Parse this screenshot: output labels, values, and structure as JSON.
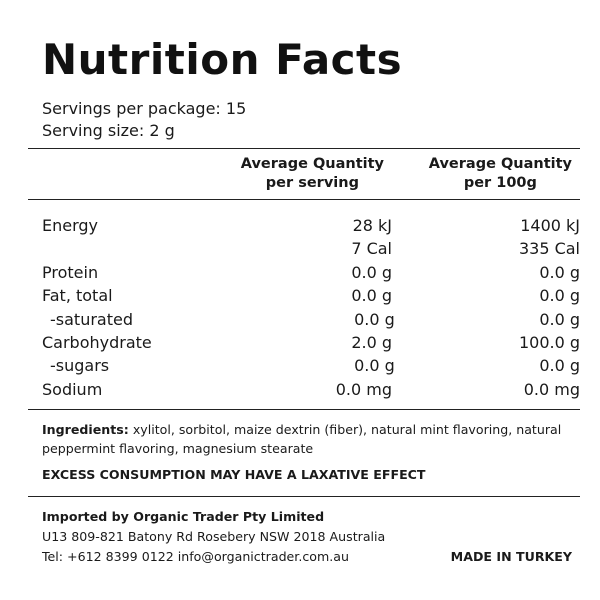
{
  "title": "Nutrition Facts",
  "servings_per_package": "Servings per package: 15",
  "serving_size": "Serving size: 2 g",
  "columns": {
    "per_serving": [
      "Average Quantity",
      "per serving"
    ],
    "per_100g": [
      "Average Quantity",
      "per 100g"
    ]
  },
  "rows": [
    {
      "name": "Energy",
      "per_serving": "28 kJ",
      "per_100g": "1400 kJ"
    },
    {
      "name": "",
      "per_serving": "7 Cal",
      "per_100g": "335 Cal"
    },
    {
      "name": "Protein",
      "per_serving": "0.0 g",
      "per_100g": "0.0 g"
    },
    {
      "name": "Fat, total",
      "per_serving": "0.0 g",
      "per_100g": "0.0 g"
    },
    {
      "name": "-saturated",
      "per_serving": "0.0 g",
      "per_100g": "0.0 g"
    },
    {
      "name": "Carbohydrate",
      "per_serving": "2.0 g",
      "per_100g": "100.0 g"
    },
    {
      "name": "-sugars",
      "per_serving": "0.0 g",
      "per_100g": "0.0 g"
    },
    {
      "name": "Sodium",
      "per_serving": "0.0 mg",
      "per_100g": "0.0 mg"
    }
  ],
  "ingredients": {
    "label": "Ingredients:",
    "text": " xylitol, sorbitol, maize dextrin (fiber), natural mint flavoring, natural peppermint flavoring, magnesium stearate"
  },
  "warning": "EXCESS CONSUMPTION MAY HAVE A LAXATIVE EFFECT",
  "importer": {
    "name": "Imported by Organic Trader Pty Limited",
    "address": "U13 809-821 Batony Rd Rosebery NSW 2018 Australia",
    "contact": "Tel: +612 8399 0122 info@organictrader.com.au"
  },
  "origin": "MADE IN TURKEY"
}
